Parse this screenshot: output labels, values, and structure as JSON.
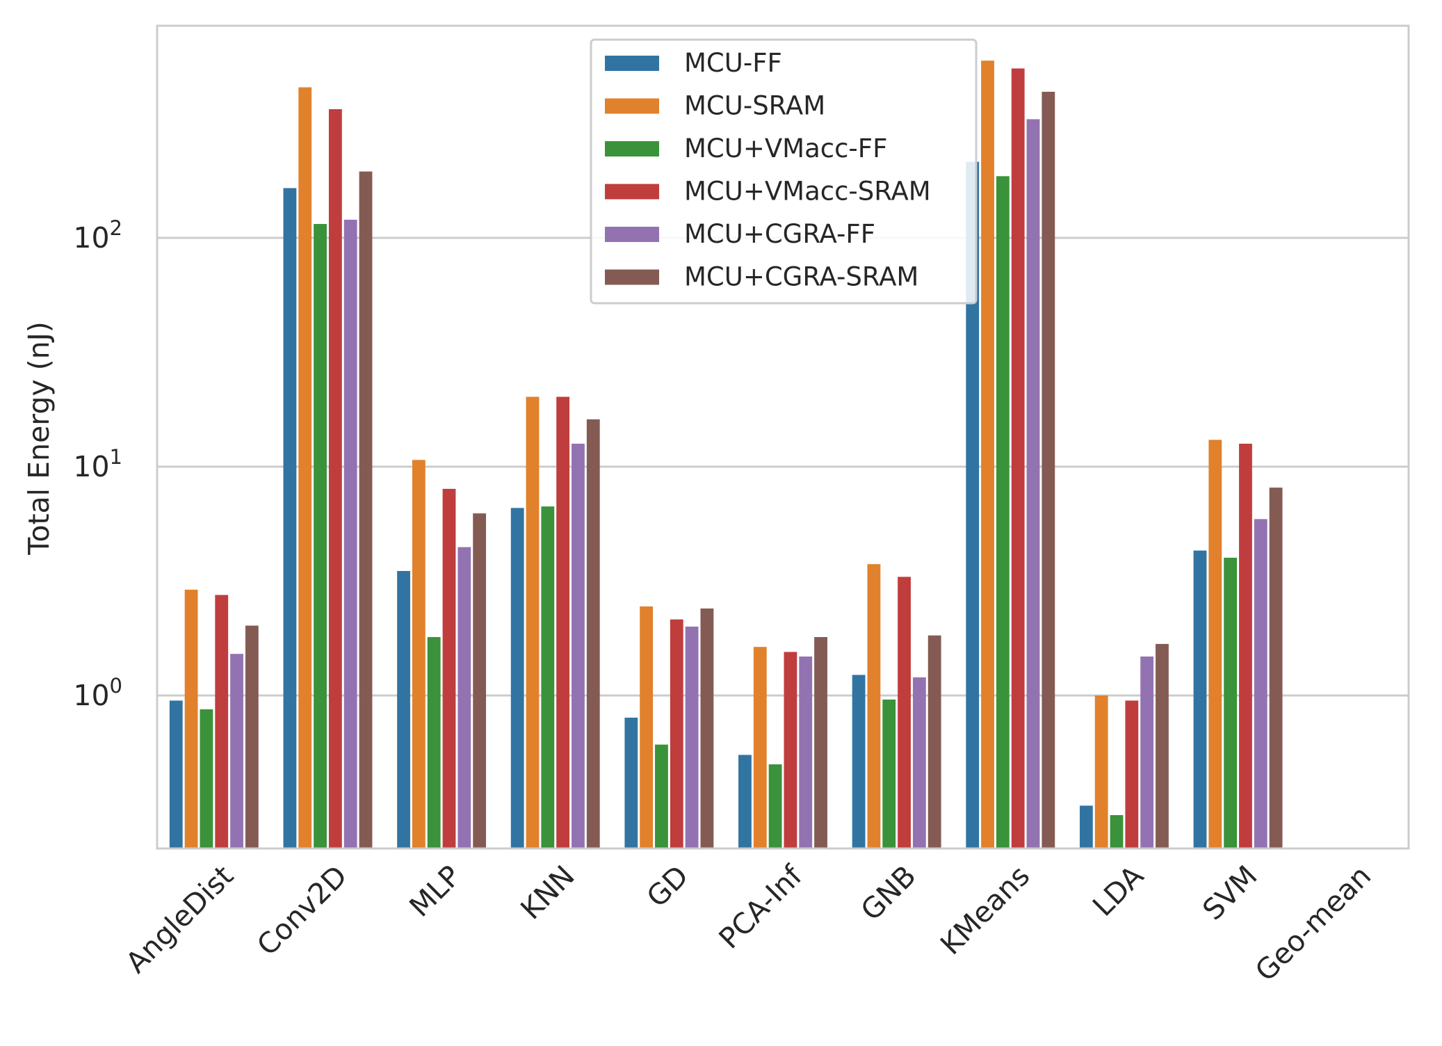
{
  "chart_data": {
    "type": "bar",
    "title": "",
    "xlabel": "",
    "ylabel": "Total Energy (nJ)",
    "yscale": "log",
    "ylim": [
      0.2,
      1000
    ],
    "grid": "y-major",
    "legend_position": "top-center",
    "categories": [
      "AngleDist",
      "Conv2D",
      "MLP",
      "KNN",
      "GD",
      "PCA-Inf",
      "GNB",
      "KMeans",
      "LDA",
      "SVM",
      "Geo-mean"
    ],
    "yticks": [
      {
        "value": 1,
        "base": "10",
        "exp": "0"
      },
      {
        "value": 10,
        "base": "10",
        "exp": "1"
      },
      {
        "value": 100,
        "base": "10",
        "exp": "2"
      }
    ],
    "series": [
      {
        "name": "MCU-FF",
        "color": "#3274a1",
        "values": [
          0.95,
          165,
          3.5,
          6.6,
          0.8,
          0.55,
          1.23,
          215,
          0.33,
          4.3,
          null
        ]
      },
      {
        "name": "MCU-SRAM",
        "color": "#e1812c",
        "values": [
          2.9,
          455,
          10.7,
          20.2,
          2.45,
          1.63,
          3.75,
          595,
          1.0,
          13.1,
          null
        ]
      },
      {
        "name": "MCU+VMacc-FF",
        "color": "#3a923a",
        "values": [
          0.87,
          115,
          1.8,
          6.7,
          0.61,
          0.5,
          0.96,
          186,
          0.3,
          4.0,
          null
        ]
      },
      {
        "name": "MCU+VMacc-SRAM",
        "color": "#c03d3e",
        "values": [
          2.75,
          365,
          8.0,
          20.2,
          2.15,
          1.55,
          3.3,
          550,
          0.95,
          12.6,
          null
        ]
      },
      {
        "name": "MCU+CGRA-FF",
        "color": "#9372b2",
        "values": [
          1.52,
          120,
          4.45,
          12.6,
          2.0,
          1.48,
          1.2,
          330,
          1.48,
          5.9,
          null
        ]
      },
      {
        "name": "MCU+CGRA-SRAM",
        "color": "#845b53",
        "values": [
          2.02,
          195,
          6.25,
          16.1,
          2.4,
          1.8,
          1.83,
          435,
          1.68,
          8.1,
          null
        ]
      }
    ]
  }
}
